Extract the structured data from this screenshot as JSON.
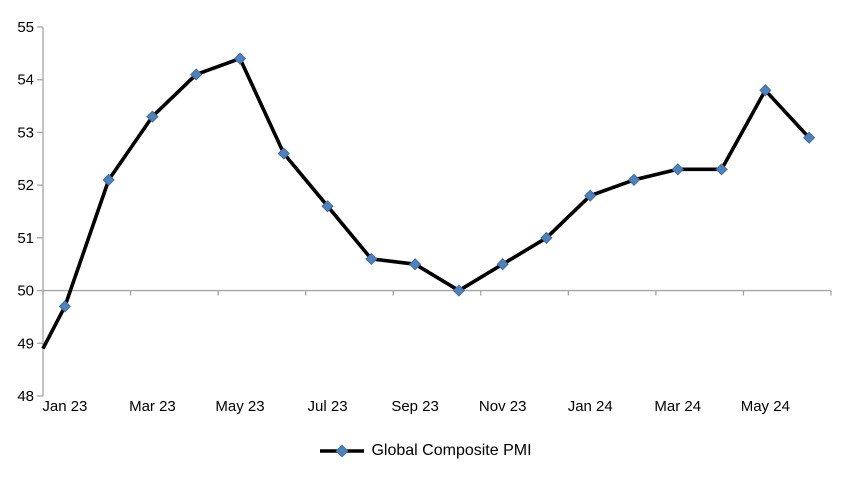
{
  "chart_data": {
    "type": "line",
    "title": "",
    "xlabel": "",
    "ylabel": "",
    "categories": [
      "Jan 23",
      "Feb 23",
      "Mar 23",
      "Apr 23",
      "May 23",
      "Jun 23",
      "Jul 23",
      "Aug 23",
      "Sep 23",
      "Oct 23",
      "Nov 23",
      "Dec 23",
      "Jan 24",
      "Feb 24",
      "Mar 24",
      "Apr 24",
      "May 24",
      "Jun 24"
    ],
    "series": [
      {
        "name": "Global Composite PMI",
        "values": [
          49.7,
          52.1,
          53.3,
          54.1,
          54.4,
          52.6,
          51.6,
          50.6,
          50.5,
          50.0,
          50.5,
          51.0,
          51.8,
          52.1,
          52.3,
          52.3,
          53.8,
          52.9
        ],
        "marker": "diamond"
      }
    ],
    "line_enters_left_edge_at": 48.9,
    "x_axis_tick_labels": [
      "Jan 23",
      "Mar 23",
      "May 23",
      "Jul 23",
      "Sep 23",
      "Nov 23",
      "Jan 24",
      "Mar 24",
      "May 24"
    ],
    "y_ticks": [
      55,
      54,
      53,
      52,
      51,
      50,
      49,
      48
    ],
    "ylim": [
      48,
      55
    ],
    "x_axis_cross_value": 50,
    "grid": false,
    "legend": {
      "position": "bottom",
      "label": "Global Composite PMI"
    }
  },
  "colors": {
    "series_line": "#000000",
    "marker_fill": "#4F81BD",
    "marker_border": "#3E6DA5",
    "axis": "#A6A6A6",
    "text": "#000000",
    "background": "#FFFFFF"
  }
}
